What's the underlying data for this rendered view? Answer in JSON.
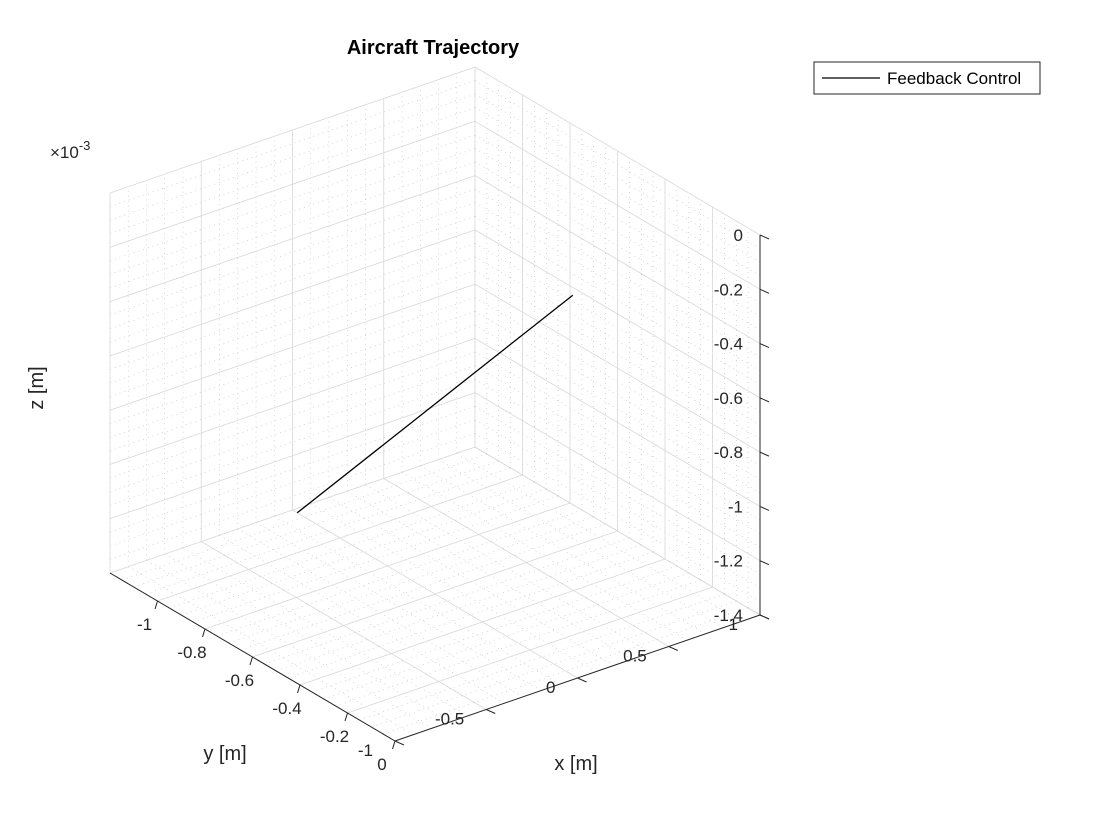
{
  "chart_data": {
    "type": "line",
    "title": "Aircraft Trajectory",
    "xlabel": "x [m]",
    "ylabel": "y [m]",
    "zlabel": "z [m]",
    "xlim": [
      -1.2,
      0
    ],
    "ylim": [
      -1,
      1
    ],
    "zlim": [
      -0.0014,
      0
    ],
    "z_exponent_label": "×10",
    "z_exponent_value": "-3",
    "x_ticks": [
      -1,
      -0.8,
      -0.6,
      -0.4,
      -0.2,
      0
    ],
    "x_tick_labels": [
      "-1",
      "-0.8",
      "-0.6",
      "-0.4",
      "-0.2",
      "0"
    ],
    "y_ticks": [
      -1,
      -0.5,
      0,
      0.5,
      1
    ],
    "y_tick_labels": [
      "-1",
      "-0.5",
      "0",
      "0.5",
      "1"
    ],
    "z_ticks": [
      -0.0014,
      -0.0012,
      -0.001,
      -0.0008,
      -0.0006,
      -0.0004,
      -0.0002,
      0
    ],
    "z_tick_labels": [
      "-1.4",
      "-1.2",
      "-1",
      "-0.8",
      "-0.6",
      "-0.4",
      "-0.2",
      "0"
    ],
    "grid": true,
    "minor_grid": true,
    "legend_position": "top-right",
    "series": [
      {
        "name": "Feedback Control",
        "color": "#000000",
        "x": [
          -0.02,
          -1.18
        ],
        "y": [
          0,
          0
        ],
        "z": [
          0,
          -0.0014
        ]
      }
    ]
  }
}
